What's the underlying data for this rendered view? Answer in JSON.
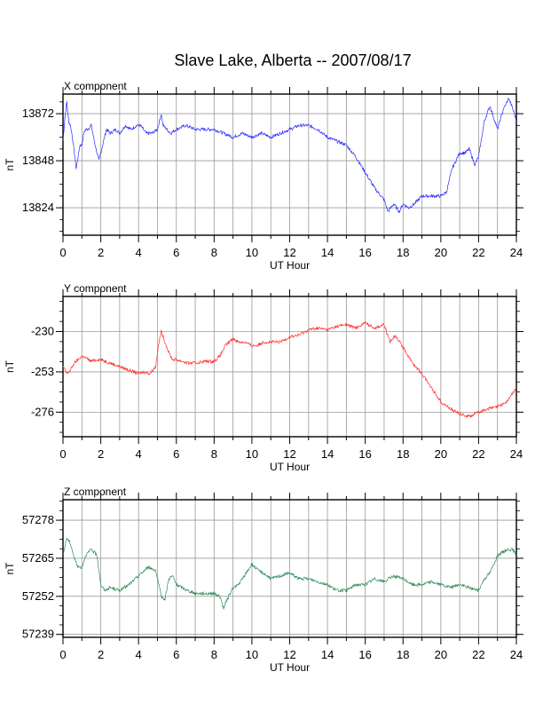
{
  "title": "Slave Lake, Alberta -- 2007/08/17",
  "chart_data": [
    {
      "type": "line",
      "panel_title": "X component",
      "xlabel": "UT Hour",
      "ylabel": "nT",
      "xlim": [
        0,
        24
      ],
      "ylim": [
        13810,
        13882
      ],
      "xticks": [
        0,
        2,
        4,
        6,
        8,
        10,
        12,
        14,
        16,
        18,
        20,
        22,
        24
      ],
      "yticks": [
        13824,
        13848,
        13872
      ],
      "grid": true,
      "color": "#2a2aff",
      "series": [
        {
          "x": [
            0,
            0.1,
            0.2,
            0.3,
            0.4,
            0.5,
            0.6,
            0.7,
            0.8,
            0.9,
            1.0,
            1.1,
            1.2,
            1.3,
            1.5,
            1.7,
            1.9,
            2.1,
            2.3,
            2.5,
            2.8,
            3.0,
            3.3,
            3.6,
            3.9,
            4.1,
            4.4,
            4.7,
            5.0,
            5.2,
            5.3,
            5.5,
            5.7,
            6.0,
            6.5,
            7.0,
            7.5,
            8.0,
            8.5,
            9.0,
            9.5,
            10.0,
            10.5,
            11.0,
            11.5,
            12.0,
            12.5,
            13.0,
            13.5,
            14.0,
            14.5,
            15.0,
            15.5,
            16.0,
            16.5,
            17.0,
            17.2,
            17.5,
            17.8,
            18.0,
            18.3,
            18.6,
            19.0,
            19.5,
            20.0,
            20.3,
            20.6,
            21.0,
            21.3,
            21.5,
            21.8,
            22.0,
            22.3,
            22.6,
            23.0,
            23.3,
            23.6,
            23.9,
            24.0
          ],
          "y": [
            13858,
            13870,
            13878,
            13868,
            13866,
            13860,
            13852,
            13844,
            13850,
            13856,
            13856,
            13862,
            13864,
            13864,
            13866,
            13856,
            13848,
            13856,
            13864,
            13862,
            13864,
            13862,
            13866,
            13864,
            13866,
            13866,
            13862,
            13862,
            13864,
            13872,
            13866,
            13864,
            13862,
            13864,
            13866,
            13864,
            13864,
            13864,
            13862,
            13860,
            13862,
            13860,
            13862,
            13860,
            13862,
            13864,
            13866,
            13866,
            13864,
            13860,
            13858,
            13856,
            13850,
            13842,
            13834,
            13828,
            13822,
            13826,
            13822,
            13826,
            13824,
            13826,
            13830,
            13830,
            13830,
            13832,
            13844,
            13852,
            13852,
            13854,
            13846,
            13850,
            13868,
            13876,
            13864,
            13874,
            13880,
            13872,
            13868
          ]
        }
      ]
    },
    {
      "type": "line",
      "panel_title": "Y component",
      "xlabel": "UT Hour",
      "ylabel": "nT",
      "xlim": [
        0,
        24
      ],
      "ylim": [
        -290,
        -210
      ],
      "xticks": [
        0,
        2,
        4,
        6,
        8,
        10,
        12,
        14,
        16,
        18,
        20,
        22,
        24
      ],
      "yticks": [
        -276,
        -253,
        -230
      ],
      "grid": true,
      "color": "#ff3030",
      "series": [
        {
          "x": [
            0,
            0.2,
            0.4,
            0.6,
            0.8,
            1.0,
            1.2,
            1.5,
            1.8,
            2.0,
            2.5,
            3.0,
            3.5,
            4.0,
            4.3,
            4.6,
            4.9,
            5.0,
            5.1,
            5.2,
            5.4,
            5.6,
            5.8,
            6.0,
            6.3,
            6.6,
            7.0,
            7.5,
            8.0,
            8.3,
            8.6,
            8.8,
            9.0,
            9.3,
            9.6,
            10.0,
            10.3,
            10.6,
            11.0,
            11.5,
            12.0,
            12.5,
            13.0,
            13.5,
            14.0,
            14.5,
            15.0,
            15.5,
            16.0,
            16.5,
            17.0,
            17.3,
            17.6,
            18.0,
            18.5,
            19.0,
            19.5,
            20.0,
            20.5,
            21.0,
            21.3,
            21.6,
            22.0,
            22.5,
            23.0,
            23.5,
            24.0
          ],
          "y": [
            -250,
            -254,
            -252,
            -248,
            -246,
            -244,
            -245,
            -247,
            -246,
            -246,
            -248,
            -250,
            -252,
            -254,
            -253,
            -254,
            -250,
            -242,
            -235,
            -230,
            -236,
            -242,
            -246,
            -246,
            -247,
            -248,
            -248,
            -247,
            -247,
            -244,
            -238,
            -236,
            -234,
            -236,
            -236,
            -238,
            -238,
            -236,
            -236,
            -236,
            -233,
            -232,
            -229,
            -228,
            -229,
            -227,
            -226,
            -228,
            -225,
            -228,
            -226,
            -236,
            -232,
            -239,
            -248,
            -254,
            -262,
            -270,
            -274,
            -277,
            -278,
            -278,
            -276,
            -274,
            -273,
            -270,
            -262
          ]
        }
      ]
    },
    {
      "type": "line",
      "panel_title": "Z component",
      "xlabel": "UT Hour",
      "ylabel": "nT",
      "xlim": [
        0,
        24
      ],
      "ylim": [
        57238,
        57285
      ],
      "xticks": [
        0,
        2,
        4,
        6,
        8,
        10,
        12,
        14,
        16,
        18,
        20,
        22,
        24
      ],
      "yticks": [
        57239,
        57252,
        57265,
        57278
      ],
      "grid": true,
      "color": "#2e8b57",
      "series": [
        {
          "x": [
            0,
            0.2,
            0.4,
            0.6,
            0.8,
            1.0,
            1.2,
            1.5,
            1.8,
            2.0,
            2.2,
            2.5,
            3.0,
            3.5,
            4.0,
            4.5,
            4.9,
            5.2,
            5.4,
            5.6,
            5.8,
            6.0,
            6.3,
            6.6,
            7.0,
            7.5,
            8.0,
            8.3,
            8.5,
            8.7,
            9.0,
            9.3,
            9.6,
            10.0,
            10.3,
            10.6,
            11.0,
            11.5,
            12.0,
            12.5,
            13.0,
            13.5,
            14.0,
            14.5,
            15.0,
            15.5,
            16.0,
            16.5,
            17.0,
            17.5,
            18.0,
            18.5,
            19.0,
            19.5,
            20.0,
            20.5,
            21.0,
            21.5,
            22.0,
            22.3,
            22.6,
            23.0,
            23.5,
            23.8,
            24.0
          ],
          "y": [
            57266,
            57272,
            57270,
            57265,
            57262,
            57262,
            57266,
            57268,
            57266,
            57256,
            57254,
            57255,
            57254,
            57256,
            57259,
            57262,
            57261,
            57252,
            57251,
            57258,
            57259,
            57256,
            57255,
            57254,
            57253,
            57253,
            57253,
            57252,
            57248,
            57251,
            57255,
            57256,
            57259,
            57263,
            57261,
            57260,
            57258,
            57259,
            57260,
            57258,
            57258,
            57257,
            57256,
            57254,
            57254,
            57256,
            57256,
            57258,
            57257,
            57259,
            57258,
            57256,
            57256,
            57257,
            57256,
            57255,
            57256,
            57255,
            57254,
            57258,
            57260,
            57266,
            57268,
            57268,
            57266
          ]
        }
      ]
    }
  ]
}
